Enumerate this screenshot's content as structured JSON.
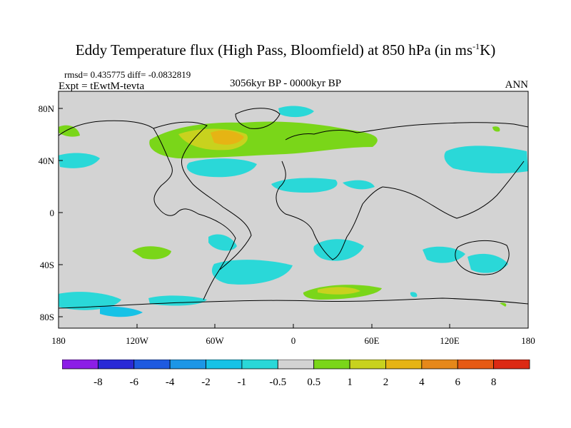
{
  "title_main": "Eddy Temperature flux (High Pass, Bloomfield) at 850 hPa (in ms",
  "title_sup": "-1",
  "title_end": "K)",
  "stats": "rmsd= 0.435775 diff= -0.0832819",
  "expt": "Expt = tEwtM-tevta",
  "period": "3056kyr BP - 0000kyr BP",
  "season": "ANN",
  "lat_ticks": [
    "80N",
    "40N",
    "0",
    "40S",
    "80S"
  ],
  "lon_ticks": [
    "180",
    "120W",
    "60W",
    "0",
    "60E",
    "120E",
    "180"
  ],
  "colorbar": {
    "labels": [
      "-8",
      "-6",
      "-4",
      "-2",
      "-1",
      "-0.5",
      "0.5",
      "1",
      "2",
      "4",
      "6",
      "8"
    ],
    "colors": [
      "#8c1ee6",
      "#2a2ad6",
      "#1e5ae0",
      "#1c96e6",
      "#16c2e6",
      "#2ad8d8",
      "#d3d3d3",
      "#7ad619",
      "#c8d21e",
      "#e6b414",
      "#e6881a",
      "#e65a14",
      "#dc2a14"
    ]
  },
  "colors": {
    "ocean_land_background": "#d3d3d3",
    "positive_anomaly": "#7ad619",
    "negative_anomaly": "#2ad8d8",
    "coastline": "#000000"
  }
}
